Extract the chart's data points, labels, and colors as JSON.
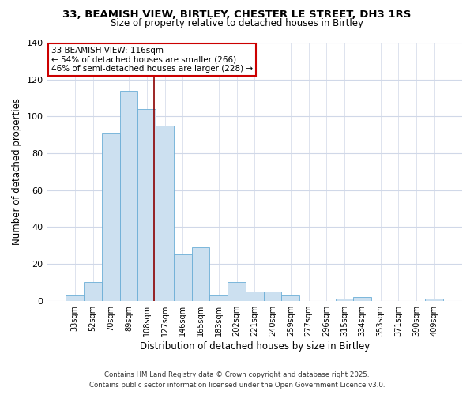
{
  "title": "33, BEAMISH VIEW, BIRTLEY, CHESTER LE STREET, DH3 1RS",
  "subtitle": "Size of property relative to detached houses in Birtley",
  "xlabel": "Distribution of detached houses by size in Birtley",
  "ylabel": "Number of detached properties",
  "bar_labels": [
    "33sqm",
    "52sqm",
    "70sqm",
    "89sqm",
    "108sqm",
    "127sqm",
    "146sqm",
    "165sqm",
    "183sqm",
    "202sqm",
    "221sqm",
    "240sqm",
    "259sqm",
    "277sqm",
    "296sqm",
    "315sqm",
    "334sqm",
    "353sqm",
    "371sqm",
    "390sqm",
    "409sqm"
  ],
  "bar_values": [
    3,
    10,
    91,
    114,
    104,
    95,
    25,
    29,
    3,
    10,
    5,
    5,
    3,
    0,
    0,
    1,
    2,
    0,
    0,
    0,
    1
  ],
  "bar_color": "#cce0f0",
  "bar_edge_color": "#6baed6",
  "ylim": [
    0,
    140
  ],
  "yticks": [
    0,
    20,
    40,
    60,
    80,
    100,
    120,
    140
  ],
  "vline_x": 4.42,
  "vline_color": "#8b0000",
  "annotation_title": "33 BEAMISH VIEW: 116sqm",
  "annotation_line1": "← 54% of detached houses are smaller (266)",
  "annotation_line2": "46% of semi-detached houses are larger (228) →",
  "annotation_box_color": "#ffffff",
  "annotation_box_edge": "#cc0000",
  "footer1": "Contains HM Land Registry data © Crown copyright and database right 2025.",
  "footer2": "Contains public sector information licensed under the Open Government Licence v3.0.",
  "background_color": "#ffffff",
  "grid_color": "#d0d8e8"
}
